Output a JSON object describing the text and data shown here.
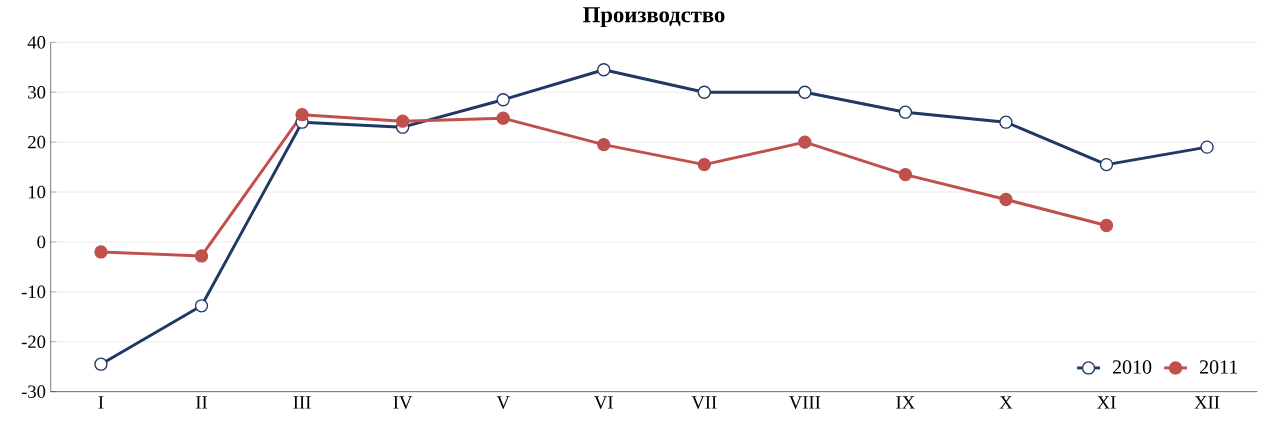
{
  "chart_data": {
    "type": "line",
    "title": "Производство",
    "categories": [
      "I",
      "II",
      "III",
      "IV",
      "V",
      "VI",
      "VII",
      "VIII",
      "IX",
      "X",
      "XI",
      "XII"
    ],
    "series": [
      {
        "name": "2010",
        "color": "#1f3864",
        "values": [
          -24.5,
          -12.8,
          24,
          23,
          28.5,
          34.5,
          30,
          30,
          26,
          24,
          15.5,
          19
        ]
      },
      {
        "name": "2011",
        "color": "#c0504d",
        "values": [
          -2,
          -2.8,
          25.5,
          24.2,
          24.8,
          19.5,
          15.5,
          20,
          13.5,
          8.5,
          3.3,
          null
        ]
      }
    ],
    "ylim": [
      -30,
      40
    ],
    "yticks": [
      -30,
      -20,
      -10,
      0,
      10,
      20,
      30,
      40
    ],
    "grid": "y",
    "legend": "bottom right",
    "marker": "circle",
    "line_style": "solid"
  }
}
